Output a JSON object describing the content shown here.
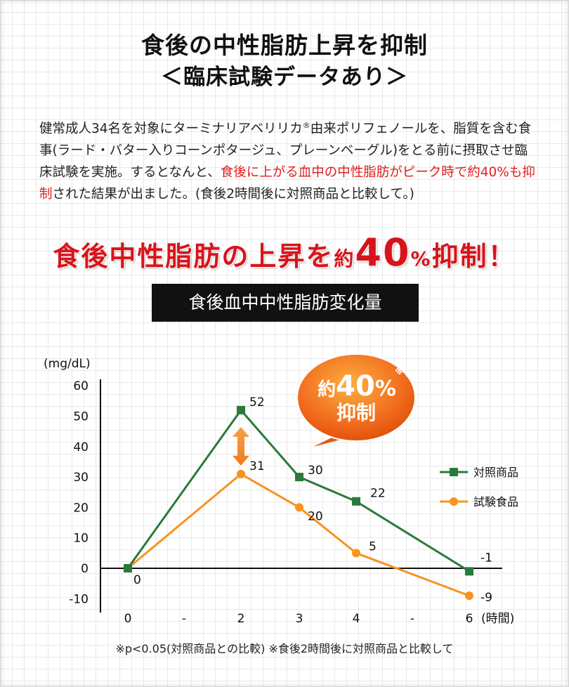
{
  "header": {
    "title_line1": "食後の中性脂肪上昇を抑制",
    "title_line2": "＜臨床試験データあり＞"
  },
  "description": {
    "part1": "健常成人34名を対象にターミナリアベリリカ",
    "registered": "®",
    "part2": "由来ポリフェノールを、脂質を含む食事(ラード・バター入りコーンポタージュ、プレーンベーグル)をとる前に摂取させ臨床試験を実施。するとなんと、",
    "highlight": "食後に上がる血中の中性脂肪がピーク時で約40%も抑制",
    "part3": "された結果が出ました。(食後2時間後に対照商品と比較して。)"
  },
  "headline": {
    "part1": "食後中性脂肪の上昇を",
    "yaku": "約",
    "number": "40",
    "percent": "%",
    "part2": "抑制！"
  },
  "chart_banner": "食後血中中性脂肪変化量",
  "bubble": {
    "prefix": "約",
    "number": "40",
    "percent": "%",
    "mark": "※",
    "line2": "抑制"
  },
  "footnote": "※p<0.05(対照商品との比較) ※食後2時間後に対照商品と比較して",
  "chart_data": {
    "type": "line",
    "ylabel": "(mg/dL)",
    "xlabel": "(時間)",
    "ylim": [
      -10,
      60
    ],
    "yticks": [
      60,
      50,
      40,
      30,
      20,
      10,
      0,
      -10
    ],
    "xticks": [
      "0",
      "-",
      "2",
      "3",
      "4",
      "-",
      "6"
    ],
    "x_positions": [
      0,
      1,
      2,
      3,
      4,
      5,
      6
    ],
    "series": [
      {
        "name": "対照商品",
        "color": "#2a7a3b",
        "marker": "square",
        "x": [
          0,
          2,
          3,
          4,
          6
        ],
        "values": [
          0,
          52,
          30,
          22,
          -1
        ],
        "labels": [
          "",
          "52",
          "30",
          "22",
          "-1"
        ]
      },
      {
        "name": "試験食品",
        "color": "#f7931e",
        "marker": "circle",
        "x": [
          0,
          2,
          3,
          4,
          6
        ],
        "values": [
          0,
          31,
          20,
          5,
          -9
        ],
        "labels": [
          "0",
          "31",
          "20",
          "5",
          "-9"
        ]
      }
    ],
    "legend_position": "right"
  }
}
